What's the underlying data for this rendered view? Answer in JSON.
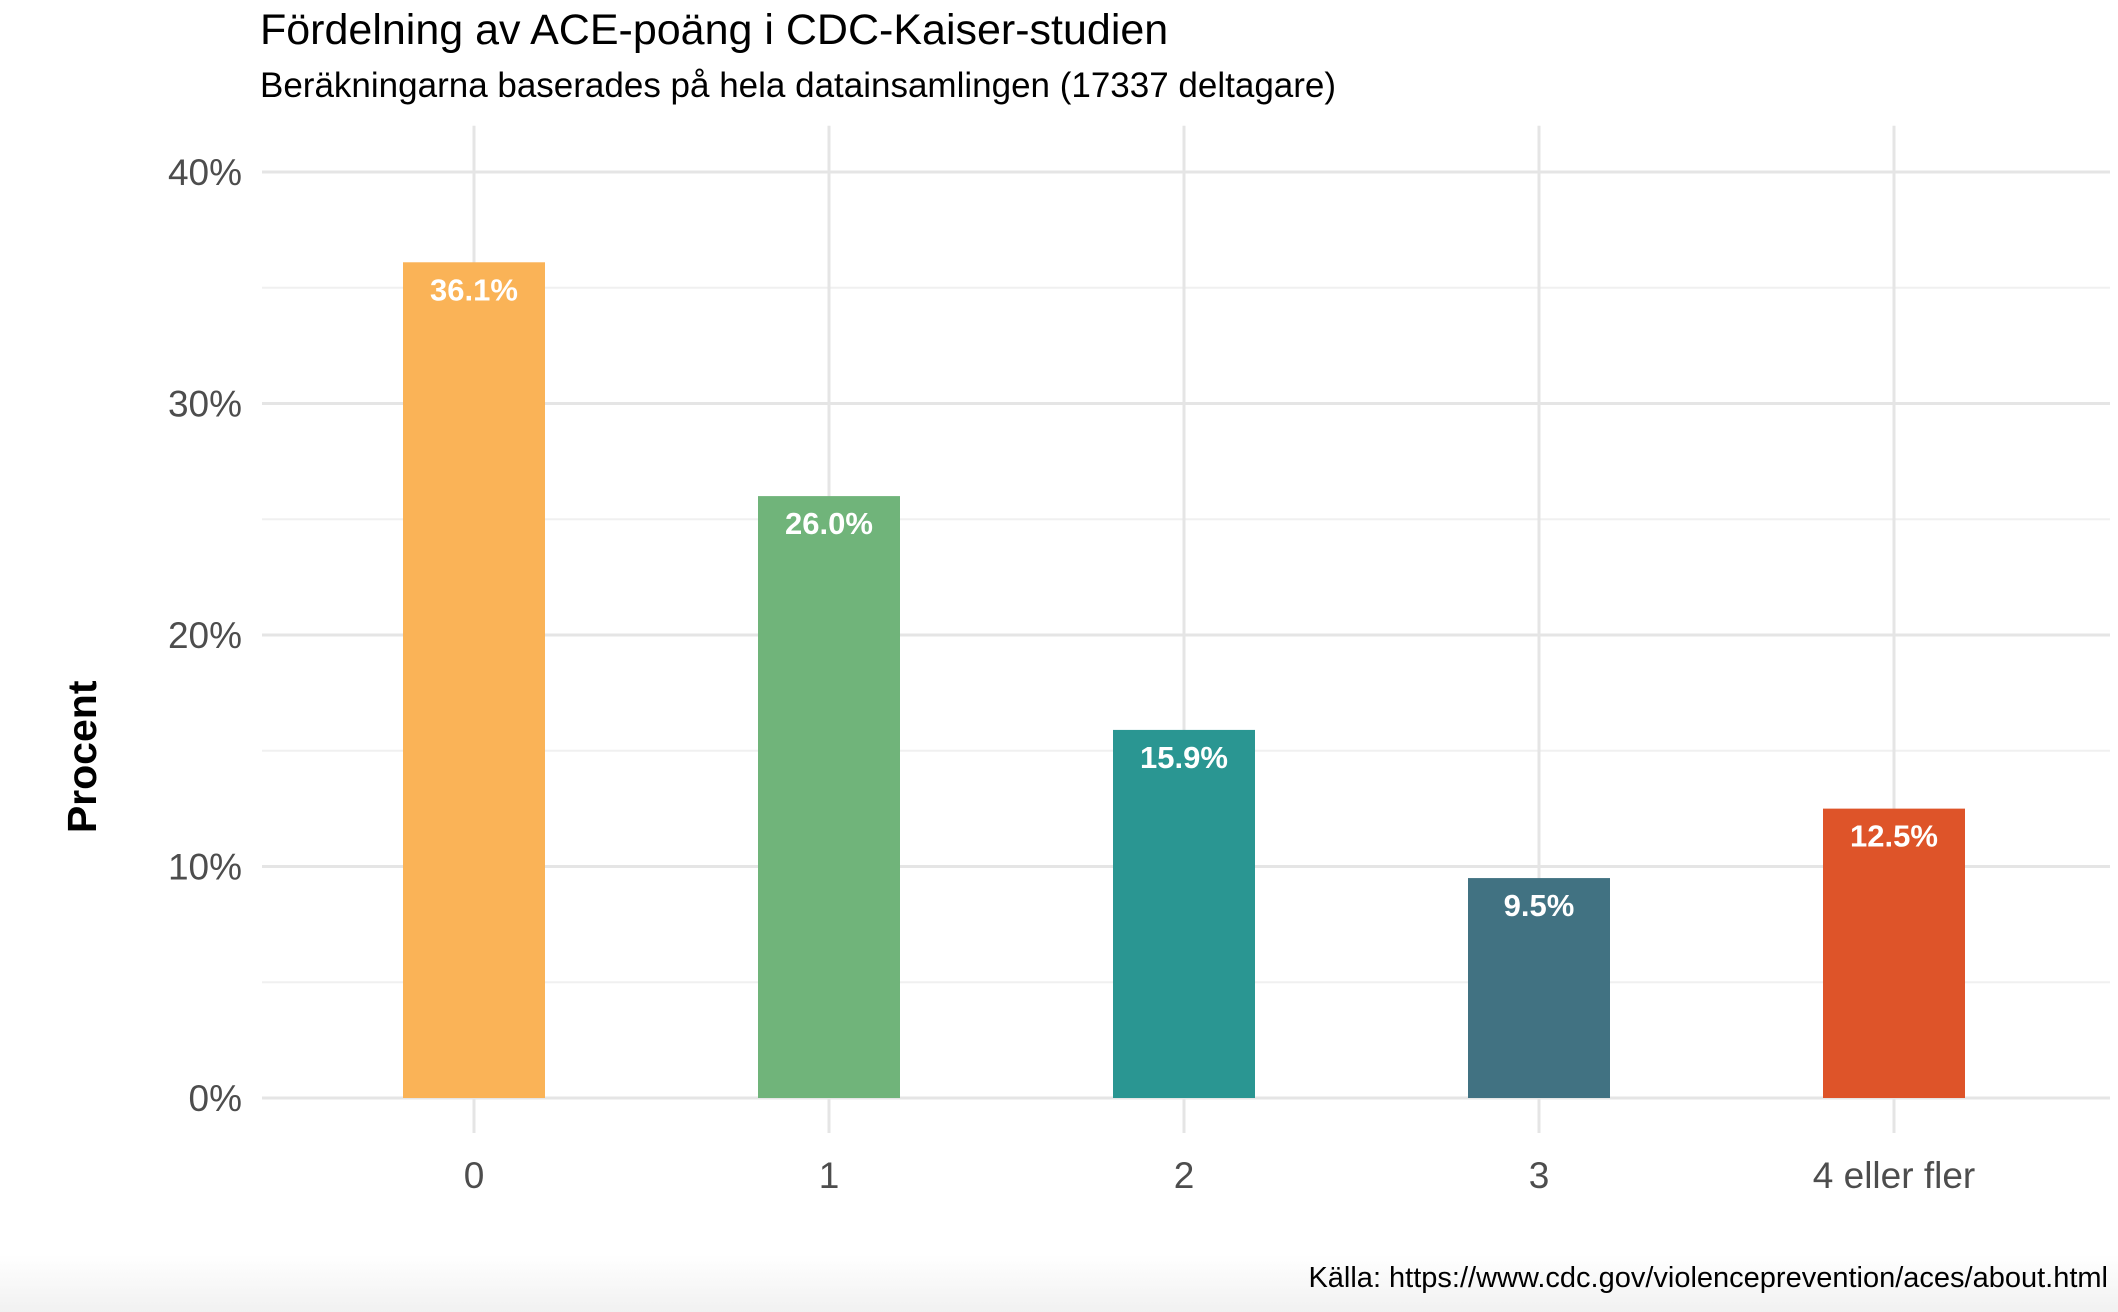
{
  "chart_data": {
    "type": "bar",
    "title": "Fördelning av ACE-poäng i CDC-Kaiser-studien",
    "subtitle": "Beräkningarna baserades på hela datainsamlingen (17337 deltagare)",
    "xlabel": "",
    "ylabel": "Procent",
    "caption": "Källa: https://www.cdc.gov/violenceprevention/aces/about.html",
    "categories": [
      "0",
      "1",
      "2",
      "3",
      "4 eller fler"
    ],
    "values": [
      36.1,
      26.0,
      15.9,
      9.5,
      12.5
    ],
    "labels": [
      "36.1%",
      "26.0%",
      "15.9%",
      "9.5%",
      "12.5%"
    ],
    "colors": [
      "#FAB357",
      "#70B47A",
      "#2A9692",
      "#417282",
      "#DE5429"
    ],
    "yticks": [
      0,
      10,
      20,
      30,
      40
    ],
    "ytick_labels": [
      "0%",
      "10%",
      "20%",
      "30%",
      "40%"
    ],
    "ylim": [
      0,
      42
    ],
    "grid": true,
    "legend": "none"
  }
}
